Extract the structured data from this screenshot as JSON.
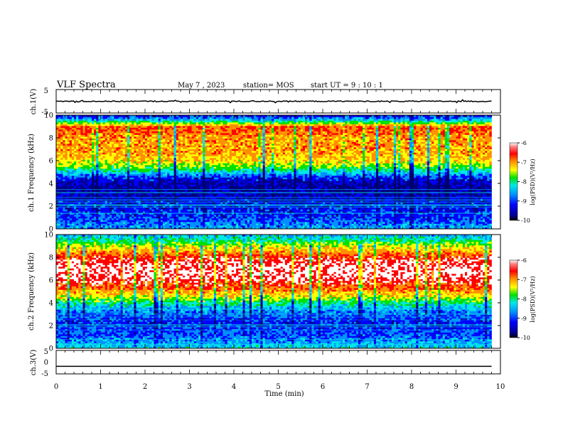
{
  "header": {
    "title": "VLF Spectra",
    "date": "May 7  , 2023",
    "station": "station= MOS",
    "start": "start  UT  =   9  : 10 : 1"
  },
  "colors": {
    "spectrum": [
      "#00008c",
      "#0000ff",
      "#0090ff",
      "#00e8e8",
      "#00e000",
      "#ffff00",
      "#ff9000",
      "#ff0000",
      "#ffffff"
    ],
    "trace": "#000000",
    "axes": "#000000"
  },
  "chart_data": [
    {
      "type": "line",
      "panel": "ch1-waveform",
      "ylabel": "ch.1(V)",
      "ylim": [
        -5,
        5
      ],
      "y_ticks": [
        "5",
        "-5"
      ],
      "series": [
        {
          "x": [
            0,
            9.8
          ],
          "y": [
            0,
            0
          ]
        }
      ]
    },
    {
      "type": "heatmap",
      "panel": "ch1-spectrogram",
      "ylabel": "ch.1\nFrequency (kHz)",
      "ylim": [
        0,
        10
      ],
      "y_ticks": [
        "0",
        "2",
        "4",
        "6",
        "8",
        "10"
      ],
      "x_extent": [
        0,
        9.8
      ],
      "colorbar": {
        "label": "log(PSD)(V²/Hz)",
        "range": [
          -10,
          -6
        ],
        "ticks": [
          "-6",
          "-7",
          "-8",
          "-9",
          "-10"
        ]
      },
      "profile": [
        {
          "f": 0,
          "v": -8.6
        },
        {
          "f": 0.5,
          "v": -8.8
        },
        {
          "f": 1.0,
          "v": -9.1
        },
        {
          "f": 1.5,
          "v": -9.2
        },
        {
          "f": 2.0,
          "v": -9.3
        },
        {
          "f": 2.5,
          "v": -9.4
        },
        {
          "f": 3.0,
          "v": -9.6
        },
        {
          "f": 3.5,
          "v": -9.7
        },
        {
          "f": 4.0,
          "v": -9.6
        },
        {
          "f": 4.5,
          "v": -9.2
        },
        {
          "f": 5.0,
          "v": -8.3
        },
        {
          "f": 5.5,
          "v": -7.6
        },
        {
          "f": 6.0,
          "v": -7.1
        },
        {
          "f": 6.5,
          "v": -6.9
        },
        {
          "f": 7.0,
          "v": -6.8
        },
        {
          "f": 7.5,
          "v": -6.8
        },
        {
          "f": 8.0,
          "v": -6.8
        },
        {
          "f": 8.5,
          "v": -6.6
        },
        {
          "f": 9.0,
          "v": -6.5
        },
        {
          "f": 9.3,
          "v": -7.5
        },
        {
          "f": 9.6,
          "v": -8.5
        },
        {
          "f": 10,
          "v": -9.3
        }
      ]
    },
    {
      "type": "heatmap",
      "panel": "ch2-spectrogram",
      "ylabel": "ch.2\nFrequency (kHz)",
      "ylim": [
        0,
        10
      ],
      "y_ticks": [
        "0",
        "2",
        "4",
        "6",
        "8",
        "10"
      ],
      "x_extent": [
        0,
        9.8
      ],
      "colorbar": {
        "label": "log(PSD)(V²/Hz)",
        "range": [
          -10,
          -6
        ],
        "ticks": [
          "-6",
          "-7",
          "-8",
          "-9",
          "-10"
        ]
      },
      "profile": [
        {
          "f": 0,
          "v": -8.3
        },
        {
          "f": 0.5,
          "v": -8.6
        },
        {
          "f": 1.0,
          "v": -8.9
        },
        {
          "f": 1.5,
          "v": -9.0
        },
        {
          "f": 2.0,
          "v": -9.2
        },
        {
          "f": 2.5,
          "v": -9.2
        },
        {
          "f": 3.0,
          "v": -8.9
        },
        {
          "f": 3.5,
          "v": -8.6
        },
        {
          "f": 4.0,
          "v": -8.0
        },
        {
          "f": 4.5,
          "v": -7.3
        },
        {
          "f": 5.0,
          "v": -6.8
        },
        {
          "f": 5.5,
          "v": -6.4
        },
        {
          "f": 6.0,
          "v": -6.1
        },
        {
          "f": 6.5,
          "v": -5.9
        },
        {
          "f": 7.0,
          "v": -5.9
        },
        {
          "f": 7.5,
          "v": -6.0
        },
        {
          "f": 8.0,
          "v": -6.3
        },
        {
          "f": 8.5,
          "v": -6.8
        },
        {
          "f": 9.0,
          "v": -7.3
        },
        {
          "f": 9.5,
          "v": -8.0
        },
        {
          "f": 10,
          "v": -8.5
        }
      ]
    },
    {
      "type": "line",
      "panel": "ch3-waveform",
      "ylabel": "ch.3(V)",
      "ylim": [
        -5,
        5
      ],
      "y_ticks": [
        "5",
        "0",
        "-5"
      ],
      "series": [
        {
          "x": [
            0,
            9.8
          ],
          "y": [
            -1.8,
            -1.8
          ]
        }
      ]
    }
  ],
  "xaxis": {
    "label": "Time  (min)",
    "lim": [
      0,
      10
    ],
    "ticks": [
      "0",
      "1",
      "2",
      "3",
      "4",
      "5",
      "6",
      "7",
      "8",
      "9",
      "10"
    ]
  }
}
